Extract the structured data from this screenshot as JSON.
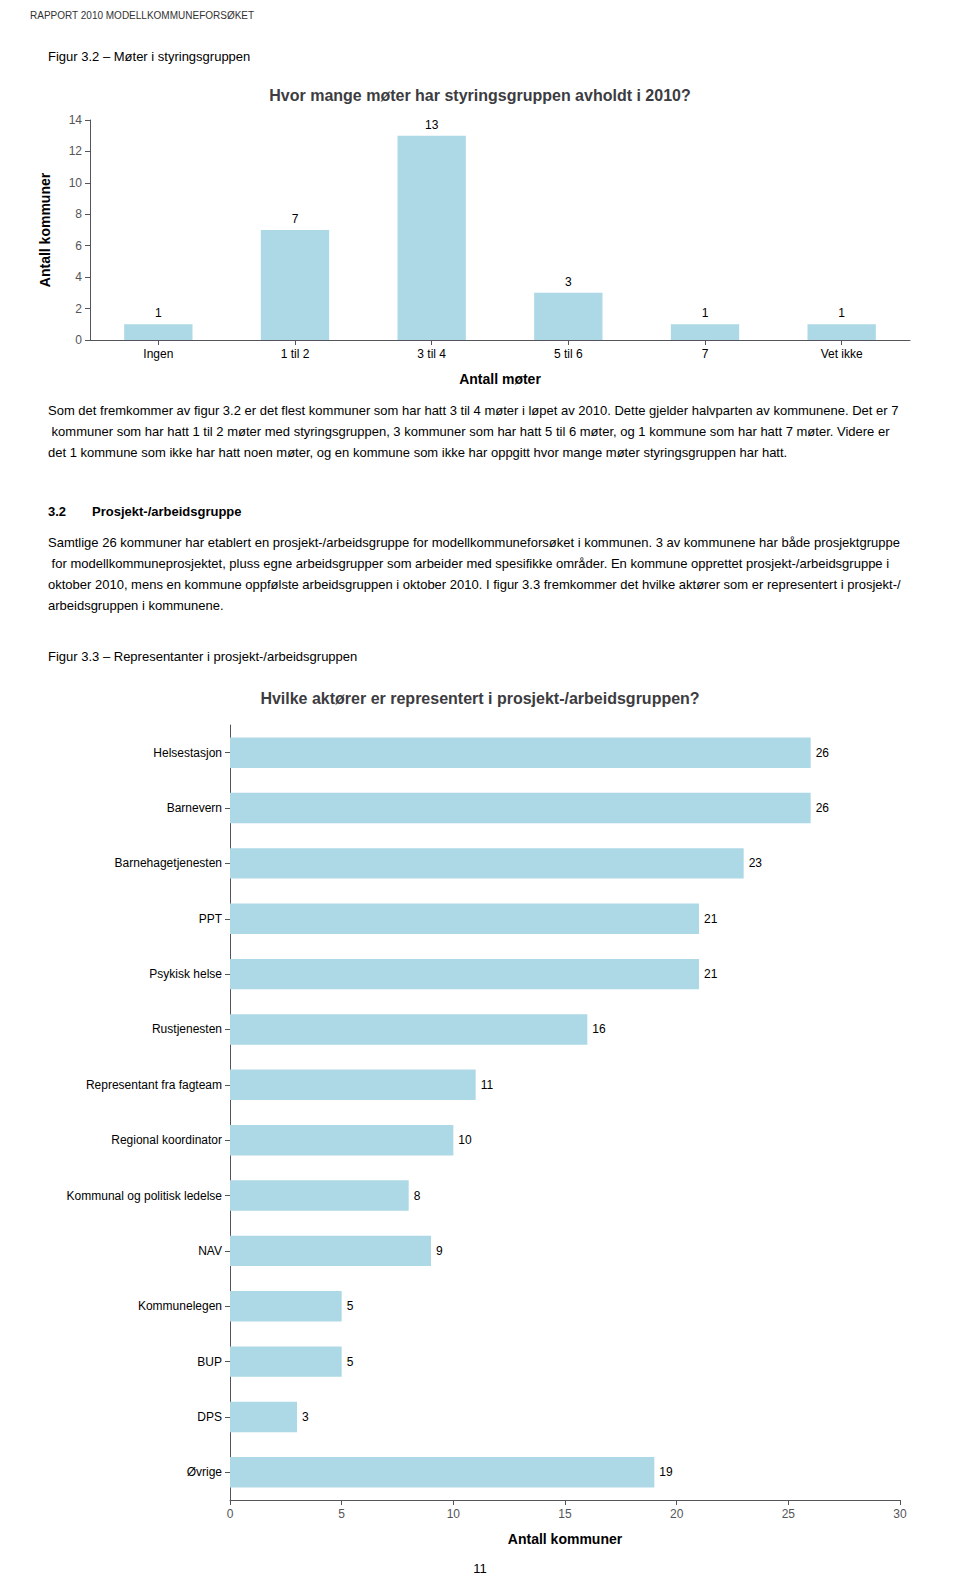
{
  "chart_data": [
    {
      "type": "bar",
      "title": "Hvor mange møter har styringsgruppen avholdt i 2010?",
      "categories": [
        "Ingen",
        "1 til 2",
        "3 til 4",
        "5 til 6",
        "7",
        "Vet ikke"
      ],
      "values": [
        1,
        7,
        13,
        3,
        1,
        1
      ],
      "color": "#add8e6",
      "xlabel": "Antall møter",
      "ylabel": "Antall kommuner",
      "ylim": [
        0,
        14
      ],
      "yticks": [
        0,
        2,
        4,
        6,
        8,
        10,
        12,
        14
      ],
      "grid": false,
      "data_labels": true,
      "annotations": [
        "RAPPORT 2010 MODELLKOMMUNEFORSØKET",
        "Figur 3.2 – Møter i styringsgruppen",
        "Som det fremkommer av figur 3.2 er det flest kommuner som har hatt 3 til 4 møter i løpet av 2010. Dette gjelder halvparten av kommunene. Det er 7 kommuner som har hatt 1 til 2 møter med styringsgruppen, 3 kommuner som har hatt 5 til 6 møter, og 1 kommune som har hatt 7 møter. Videre er det 1 kommune som ikke har hatt noen møter, og en kommune som ikke har oppgitt hvor mange møter styringsgruppen har hatt."
      ]
    },
    {
      "type": "bar",
      "orientation": "horizontal",
      "title": "Hvilke aktører er representert i prosjekt-/arbeidsgruppen?",
      "categories": [
        "Helsestasjon",
        "Barnevern",
        "Barnehagetjenesten",
        "PPT",
        "Psykisk helse",
        "Rustjenesten",
        "Representant fra fagteam",
        "Regional koordinator",
        "Kommunal og politisk ledelse",
        "NAV",
        "Kommunelegen",
        "BUP",
        "DPS",
        "Øvrige"
      ],
      "values": [
        26,
        26,
        23,
        21,
        21,
        16,
        11,
        10,
        8,
        9,
        5,
        5,
        3,
        19
      ],
      "color": "#add8e6",
      "xlabel": "Antall kommuner",
      "xlim": [
        0,
        30
      ],
      "xticks": [
        0,
        5,
        10,
        15,
        20,
        25,
        30
      ],
      "grid": false,
      "data_labels": true,
      "annotations": [
        "3.2",
        "Prosjekt-/arbeidsgruppe",
        "Samtlige 26 kommuner har etablert en prosjekt-/arbeidsgruppe for modellkommuneforsøket i kommunen. 3 av kommunene har både prosjektgruppe for modellkommuneprosjektet, pluss egne arbeidsgrupper som arbeider med spesifikke områder. En kommune opprettet prosjekt-/arbeidsgruppe i oktober 2010, mens en kommune oppfølste arbeidsgruppen i oktober 2010. I figur 3.3 fremkommer det hvilke aktører som er representert i prosjekt-/arbeidsgruppen i kommunene.",
        "Figur 3.3 – Representanter i prosjekt-/arbeidsgruppen",
        "11"
      ]
    }
  ]
}
